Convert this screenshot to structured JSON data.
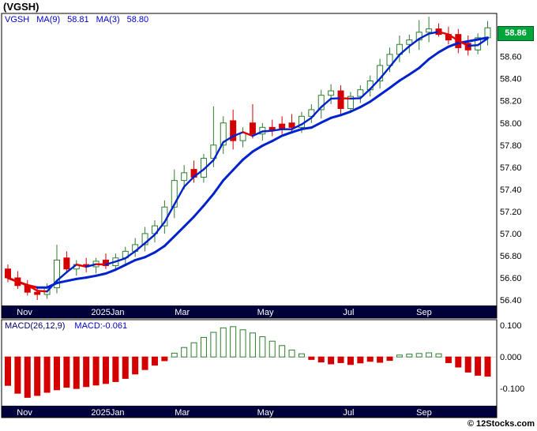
{
  "title": "(VGSH)",
  "legend": {
    "symbol": "VGSH",
    "ma9_label": "MA(9)",
    "ma9_value": "58.81",
    "ma3_label": "MA(3)",
    "ma3_value": "58.80"
  },
  "price_tag": "58.86",
  "macd_legend": {
    "name": "MACD(26,12,9)",
    "value": "MACD:-0.061"
  },
  "copyright": "© 12Stocks.com",
  "colors": {
    "legend_blue": "#0000cc",
    "macd_name": "#000066",
    "up": "#2f7d2f",
    "down": "#d40000",
    "ma_up": "#0022cc",
    "ma_down": "#e00000",
    "macd_pos": "#2f7d2f",
    "axis_bar": "#00003a",
    "tag_bg": "#00a53c",
    "tag_border": "#005a20",
    "axis_text": "#000000",
    "month_text": "#ffffff"
  },
  "chart_data": {
    "type": "candlestick+macd-histogram",
    "symbol": "VGSH",
    "title": "(VGSH)",
    "x_ticks": [
      {
        "label": "Nov",
        "pos": 1.7
      },
      {
        "label": "2025Jan",
        "pos": 10.2
      },
      {
        "label": "Mar",
        "pos": 17.8
      },
      {
        "label": "May",
        "pos": 26.3
      },
      {
        "label": "Jul",
        "pos": 34.8
      },
      {
        "label": "Sep",
        "pos": 42.5
      }
    ],
    "price": {
      "ylim": [
        56.35,
        58.99
      ],
      "y_ticks": [
        58.6,
        58.4,
        58.2,
        58.0,
        57.8,
        57.6,
        57.4,
        57.2,
        57.0,
        56.8,
        56.6,
        56.4
      ],
      "ma9_last": 58.81,
      "ma3_last": 58.8,
      "last_close": 58.86,
      "candles": [
        [
          56.68,
          56.72,
          56.56,
          56.6
        ],
        [
          56.6,
          56.66,
          56.5,
          56.53
        ],
        [
          56.53,
          56.58,
          56.44,
          56.47
        ],
        [
          56.47,
          56.52,
          56.4,
          56.45
        ],
        [
          56.45,
          56.55,
          56.41,
          56.51
        ],
        [
          56.51,
          56.9,
          56.46,
          56.76
        ],
        [
          56.78,
          56.84,
          56.64,
          56.68
        ],
        [
          56.68,
          56.76,
          56.62,
          56.72
        ],
        [
          56.72,
          56.78,
          56.65,
          56.7
        ],
        [
          56.7,
          56.78,
          56.64,
          56.75
        ],
        [
          56.76,
          56.82,
          56.68,
          56.71
        ],
        [
          56.71,
          56.82,
          56.67,
          56.78
        ],
        [
          56.78,
          56.88,
          56.73,
          56.84
        ],
        [
          56.84,
          56.96,
          56.79,
          56.9
        ],
        [
          56.9,
          57.06,
          56.84,
          57.0
        ],
        [
          57.0,
          57.12,
          56.92,
          57.07
        ],
        [
          57.07,
          57.3,
          57.0,
          57.24
        ],
        [
          57.24,
          57.58,
          57.14,
          57.48
        ],
        [
          57.48,
          57.62,
          57.4,
          57.55
        ],
        [
          57.58,
          57.66,
          57.46,
          57.51
        ],
        [
          57.51,
          57.72,
          57.46,
          57.68
        ],
        [
          57.68,
          58.15,
          57.6,
          57.8
        ],
        [
          57.8,
          58.06,
          57.72,
          58.0
        ],
        [
          58.02,
          58.12,
          57.76,
          57.84
        ],
        [
          57.84,
          57.96,
          57.78,
          57.91
        ],
        [
          58.0,
          58.17,
          57.86,
          57.9
        ],
        [
          57.9,
          58.0,
          57.84,
          57.96
        ],
        [
          57.96,
          58.03,
          57.88,
          57.93
        ],
        [
          57.99,
          58.06,
          57.9,
          57.94
        ],
        [
          58.0,
          58.08,
          57.92,
          57.96
        ],
        [
          57.96,
          58.1,
          57.91,
          58.06
        ],
        [
          58.06,
          58.17,
          58.0,
          58.12
        ],
        [
          58.12,
          58.3,
          58.04,
          58.25
        ],
        [
          58.25,
          58.35,
          58.17,
          58.29
        ],
        [
          58.29,
          58.34,
          58.08,
          58.13
        ],
        [
          58.13,
          58.28,
          58.09,
          58.24
        ],
        [
          58.24,
          58.34,
          58.18,
          58.3
        ],
        [
          58.3,
          58.43,
          58.24,
          58.38
        ],
        [
          58.38,
          58.58,
          58.31,
          58.52
        ],
        [
          58.52,
          58.68,
          58.46,
          58.62
        ],
        [
          58.62,
          58.79,
          58.55,
          58.71
        ],
        [
          58.71,
          58.8,
          58.63,
          58.75
        ],
        [
          58.75,
          58.93,
          58.66,
          58.82
        ],
        [
          58.82,
          58.96,
          58.73,
          58.85
        ],
        [
          58.85,
          58.9,
          58.78,
          58.8
        ],
        [
          58.8,
          58.87,
          58.71,
          58.75
        ],
        [
          58.8,
          58.85,
          58.63,
          58.68
        ],
        [
          58.72,
          58.79,
          58.61,
          58.66
        ],
        [
          58.66,
          58.81,
          58.62,
          58.77
        ],
        [
          58.77,
          58.92,
          58.7,
          58.86
        ]
      ]
    },
    "macd": {
      "params": "26,12,9",
      "last": -0.061,
      "ylim": [
        -0.152,
        0.118
      ],
      "y_ticks": [
        0.1,
        0.0,
        -0.1
      ],
      "histogram": [
        -0.09,
        -0.115,
        -0.128,
        -0.122,
        -0.112,
        -0.104,
        -0.096,
        -0.1,
        -0.094,
        -0.089,
        -0.084,
        -0.078,
        -0.068,
        -0.054,
        -0.04,
        -0.026,
        -0.012,
        0.012,
        0.03,
        0.045,
        0.062,
        0.078,
        0.092,
        0.096,
        0.086,
        0.076,
        0.064,
        0.05,
        0.036,
        0.022,
        0.01,
        -0.008,
        -0.016,
        -0.022,
        -0.018,
        -0.024,
        -0.019,
        -0.014,
        -0.017,
        -0.011,
        0.006,
        0.009,
        0.011,
        0.013,
        0.01,
        -0.018,
        -0.032,
        -0.048,
        -0.058,
        -0.061
      ]
    }
  }
}
